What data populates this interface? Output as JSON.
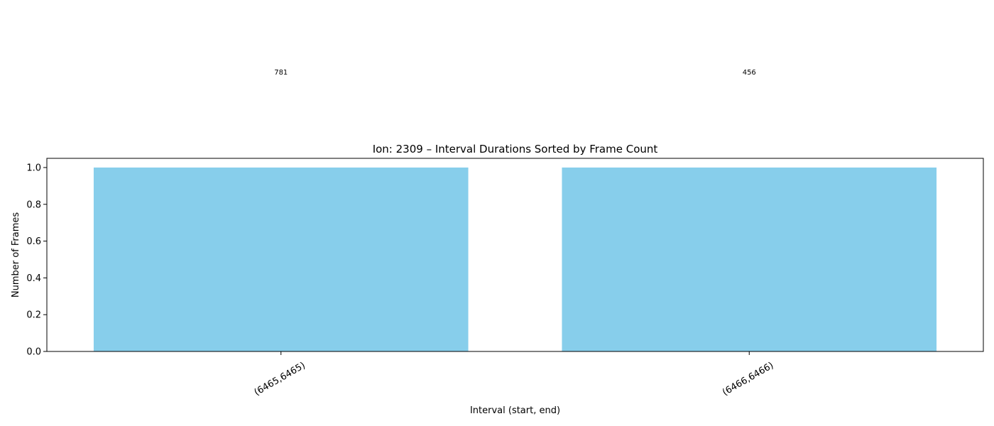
{
  "chart_data": {
    "type": "bar",
    "title": "Ion: 2309 – Interval Durations Sorted by Frame Count",
    "xlabel": "Interval (start, end)",
    "ylabel": "Number of Frames",
    "categories": [
      "(6465,6465)",
      "(6466,6466)"
    ],
    "values": [
      1,
      1
    ],
    "data_labels": [
      "781",
      "456"
    ],
    "ylim": [
      0,
      1.05
    ],
    "yticks": [
      0.0,
      0.2,
      0.4,
      0.6,
      0.8,
      1.0
    ],
    "ytick_labels": [
      "0.0",
      "0.2",
      "0.4",
      "0.6",
      "0.8",
      "1.0"
    ],
    "bar_color": "#87ceeb",
    "grid": false,
    "legend": "none"
  }
}
